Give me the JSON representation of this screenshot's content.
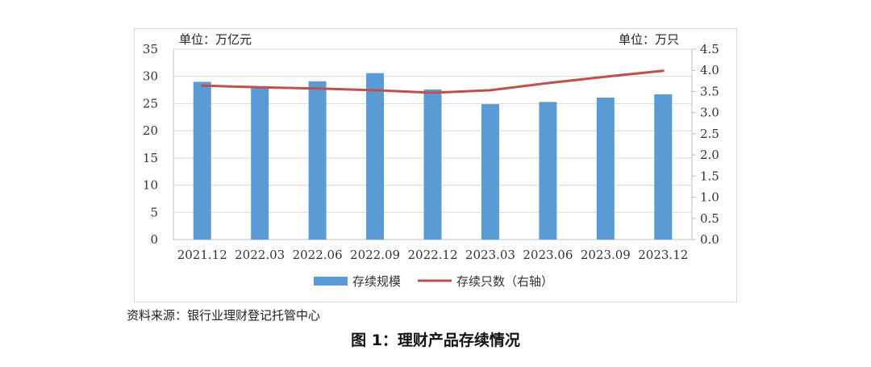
{
  "figure_title": "图 1：理财产品存续情况",
  "source": "资料来源：银行业理财登记托管中心",
  "colors": {
    "bar": "#5b9bd5",
    "line": "#c0504d",
    "grid": "#d9d9d9",
    "axis": "#bfbfbf"
  },
  "chart_data": {
    "type": "bar",
    "categories": [
      "2021.12",
      "2022.03",
      "2022.06",
      "2022.09",
      "2022.12",
      "2023.03",
      "2023.06",
      "2023.09",
      "2023.12"
    ],
    "series": [
      {
        "name": "存续规模",
        "type": "bar",
        "axis": "left",
        "values": [
          29.0,
          28.2,
          29.1,
          30.6,
          27.6,
          24.9,
          25.3,
          26.1,
          26.7
        ]
      },
      {
        "name": "存续只数（右轴）",
        "type": "line",
        "axis": "right",
        "values": [
          3.64,
          3.6,
          3.57,
          3.53,
          3.47,
          3.53,
          3.7,
          3.85,
          3.99
        ]
      }
    ],
    "y_left": {
      "label": "单位：万亿元",
      "lim": [
        0,
        35
      ],
      "ticks": [
        "0",
        "5",
        "10",
        "15",
        "20",
        "25",
        "30",
        "35"
      ]
    },
    "y_right": {
      "label": "单位：万只",
      "lim": [
        0,
        4.5
      ],
      "ticks": [
        "0.0",
        "0.5",
        "1.0",
        "1.5",
        "2.0",
        "2.5",
        "3.0",
        "3.5",
        "4.0",
        "4.5"
      ]
    },
    "grid": true,
    "legend": "bottom"
  }
}
